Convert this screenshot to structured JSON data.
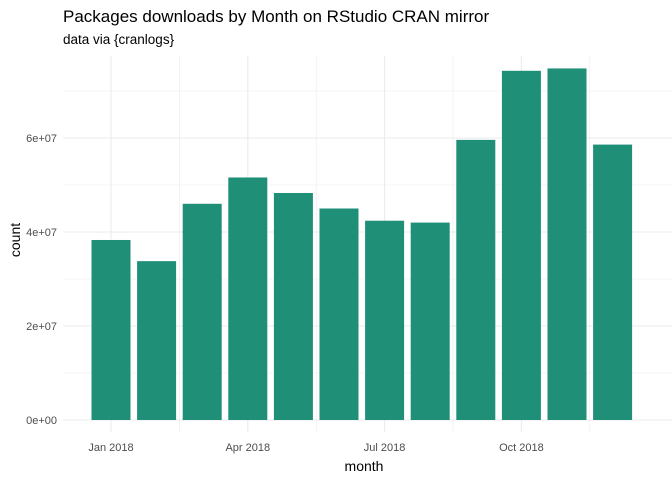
{
  "chart_data": {
    "type": "bar",
    "title": "Packages downloads by Month on RStudio CRAN mirror",
    "subtitle": "data via {cranlogs}",
    "xlabel": "month",
    "ylabel": "count",
    "categories": [
      "2018-01",
      "2018-02",
      "2018-03",
      "2018-04",
      "2018-05",
      "2018-06",
      "2018-07",
      "2018-08",
      "2018-09",
      "2018-10",
      "2018-11",
      "2018-12"
    ],
    "values": [
      38300000,
      33800000,
      46000000,
      51600000,
      48300000,
      45000000,
      42400000,
      42000000,
      59600000,
      74300000,
      74800000,
      58600000
    ],
    "x_tick_labels": [
      "Jan 2018",
      "Apr 2018",
      "Jul 2018",
      "Oct 2018"
    ],
    "x_tick_categories": [
      "2018-01",
      "2018-04",
      "2018-07",
      "2018-10"
    ],
    "y_ticks": [
      0,
      20000000,
      40000000,
      60000000
    ],
    "y_tick_labels": [
      "0e+00",
      "2e+07",
      "4e+07",
      "6e+07"
    ],
    "ylim": [
      0,
      80000000
    ],
    "grid": true,
    "bar_color": "#1f8f78",
    "grid_color": "#ebebeb"
  }
}
